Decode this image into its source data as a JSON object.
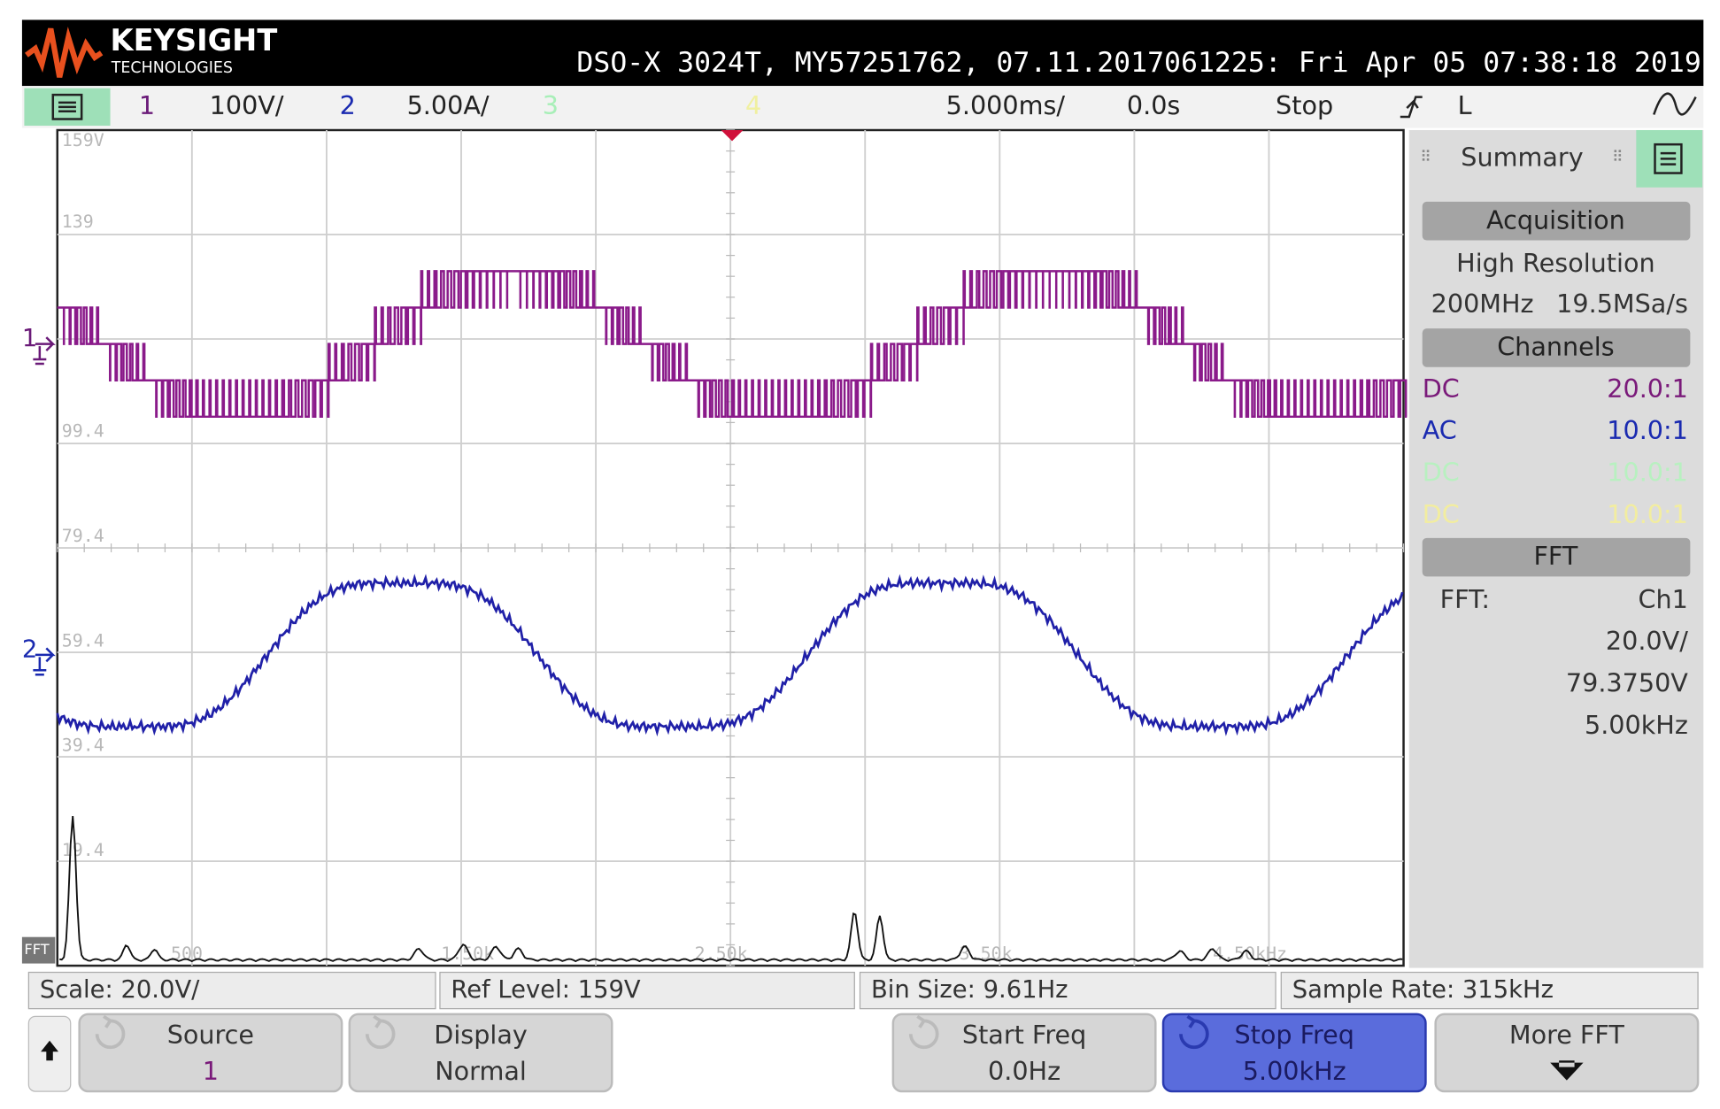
{
  "header": {
    "brand": "KEYSIGHT",
    "brand_sub": "TECHNOLOGIES",
    "instrument": "DSO-X 3024T, MY57251762, 07.11.2017061225: Fri Apr 05 07:38:18 2019"
  },
  "channel_bar": {
    "ch1": "1",
    "ch1_scale": "100V/",
    "ch2": "2",
    "ch2_scale": "5.00A/",
    "ch3": "3",
    "ch4": "4",
    "timebase": "5.000ms/",
    "delay": "0.0s",
    "run_state": "Stop",
    "trigger_source": "L"
  },
  "graticule": {
    "fft_levels": [
      "159V",
      "139",
      "99.4",
      "79.4",
      "59.4",
      "39.4",
      "19.4"
    ],
    "fft_freqs": [
      "500",
      "1.50k",
      "2.50k",
      "3.50k",
      "4.50kHz"
    ],
    "ch1_marker": "1",
    "ch2_marker": "2",
    "fft_marker": "FFT"
  },
  "summary": {
    "title": "Summary",
    "acquisition": {
      "heading": "Acquisition",
      "mode": "High Resolution",
      "bandwidth": "200MHz",
      "sample_rate": "19.5MSa/s"
    },
    "channels": {
      "heading": "Channels",
      "rows": [
        [
          "DC",
          "20.0:1"
        ],
        [
          "AC",
          "10.0:1"
        ],
        [
          "DC",
          "10.0:1"
        ],
        [
          "DC",
          "10.0:1"
        ]
      ]
    },
    "fft": {
      "heading": "FFT",
      "source_label": "FFT:",
      "source": "Ch1",
      "scale": "20.0V/",
      "offset": "79.3750V",
      "span": "5.00kHz"
    }
  },
  "status": [
    "Scale: 20.0V/",
    "Ref Level: 159V",
    "Bin Size: 9.61Hz",
    "Sample Rate: 315kHz"
  ],
  "softkeys": [
    {
      "label": "Source",
      "value": "1"
    },
    {
      "label": "Display",
      "value": "Normal"
    },
    {
      "label": "Start Freq",
      "value": "0.0Hz"
    },
    {
      "label": "Stop Freq",
      "value": "5.00kHz"
    },
    {
      "label": "More FFT"
    }
  ]
}
